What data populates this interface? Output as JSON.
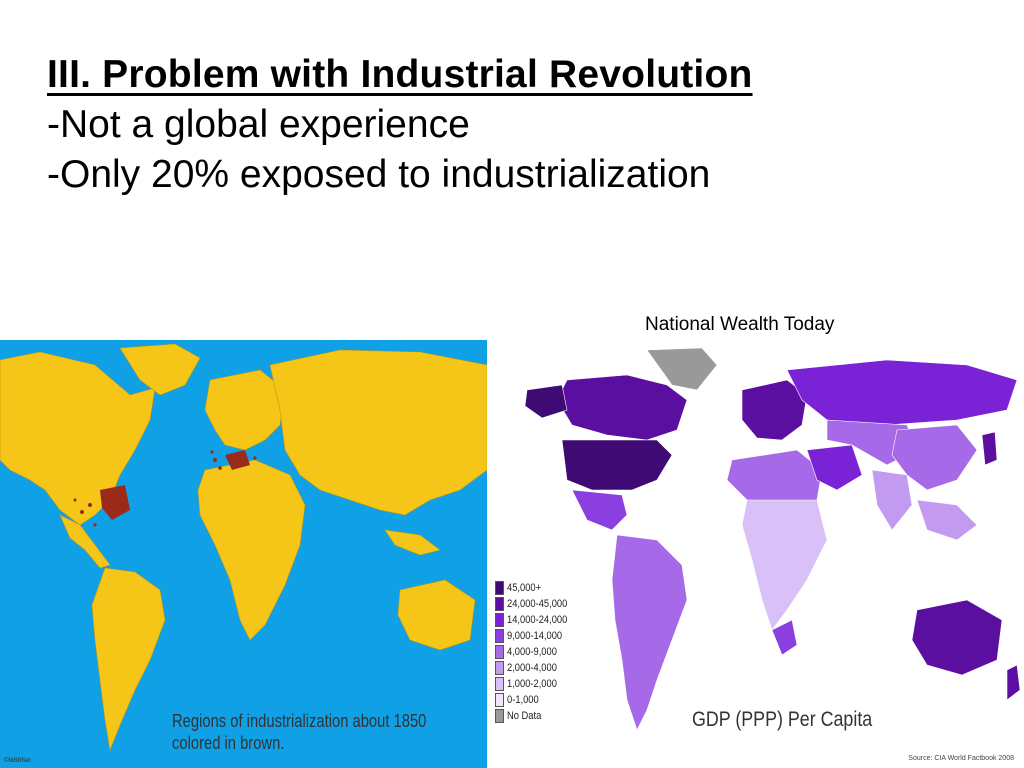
{
  "slide": {
    "title": "III.  Problem with Industrial Revolution",
    "bullets": [
      "-Not a global experience",
      "-Only 20% exposed to industrialization"
    ],
    "caption_right": "National Wealth Today"
  },
  "left_map": {
    "caption_lines": [
      "Regions of industrialization about 1850",
      "colored in brown."
    ],
    "copyright": "©MBBNet",
    "colors": {
      "ocean": "#0fa0e6",
      "land": "#f5c518",
      "industrial": "#9a2a1a"
    }
  },
  "right_map": {
    "title": "GDP (PPP) Per Capita",
    "source": "Source: CIA World Factbook 2008",
    "legend": [
      {
        "label": "45,000+",
        "color": "#3f0a73"
      },
      {
        "label": "24,000-45,000",
        "color": "#5a0fa0"
      },
      {
        "label": "14,000-24,000",
        "color": "#7a22d6"
      },
      {
        "label": "9,000-14,000",
        "color": "#8c3fe0"
      },
      {
        "label": "4,000-9,000",
        "color": "#a66ae8"
      },
      {
        "label": "2,000-4,000",
        "color": "#c29af0"
      },
      {
        "label": "1,000-2,000",
        "color": "#d9c0f6"
      },
      {
        "label": "0-1,000",
        "color": "#f0e6fb"
      },
      {
        "label": "No Data",
        "color": "#999999"
      }
    ]
  }
}
